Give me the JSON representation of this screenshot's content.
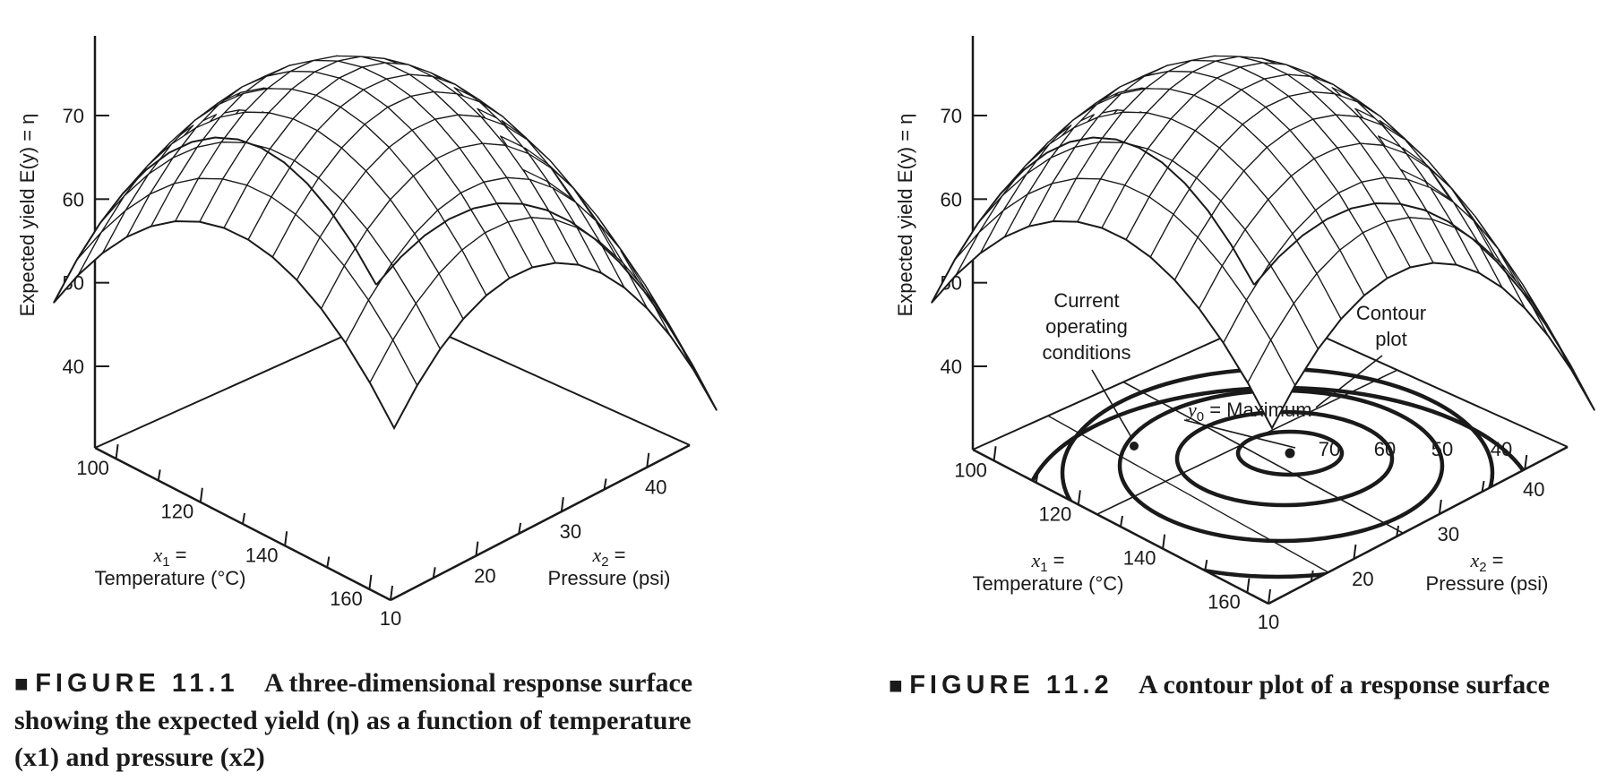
{
  "chart_data": [
    {
      "type": "surface",
      "figure": "FIGURE 11.1",
      "caption": "A three-dimensional response surface showing the expected yield (η) as a function of temperature (x1) and pressure (x2)",
      "zlabel": "Expected yield  E(y) = η",
      "x1label": {
        "symbol": "x1 =",
        "name": "Temperature (°C)"
      },
      "x2label": {
        "symbol": "x2 =",
        "name": "Pressure (psi)"
      },
      "x1_ticks": [
        100,
        120,
        140,
        160
      ],
      "x2_ticks": [
        10,
        20,
        30,
        40
      ],
      "z_ticks": [
        40,
        50,
        60,
        70
      ]
    },
    {
      "type": "surface-contour",
      "figure": "FIGURE 11.2",
      "caption": "A contour plot of a response surface",
      "zlabel": "Expected yield E(y) = η",
      "x1label": {
        "symbol": "x1 =",
        "name": "Temperature (°C)"
      },
      "x2label": {
        "symbol": "x2 =",
        "name": "Pressure (psi)"
      },
      "x1_ticks": [
        100,
        120,
        140,
        160
      ],
      "x2_ticks": [
        10,
        20,
        30,
        40
      ],
      "z_ticks": [
        40,
        50,
        60,
        70
      ],
      "contour_levels": [
        70,
        60,
        50,
        40
      ],
      "annotations": {
        "current": [
          "Current",
          "operating",
          "conditions"
        ],
        "contour": [
          "Contour",
          "plot"
        ],
        "maximum": "y0 = Maximum"
      }
    }
  ]
}
